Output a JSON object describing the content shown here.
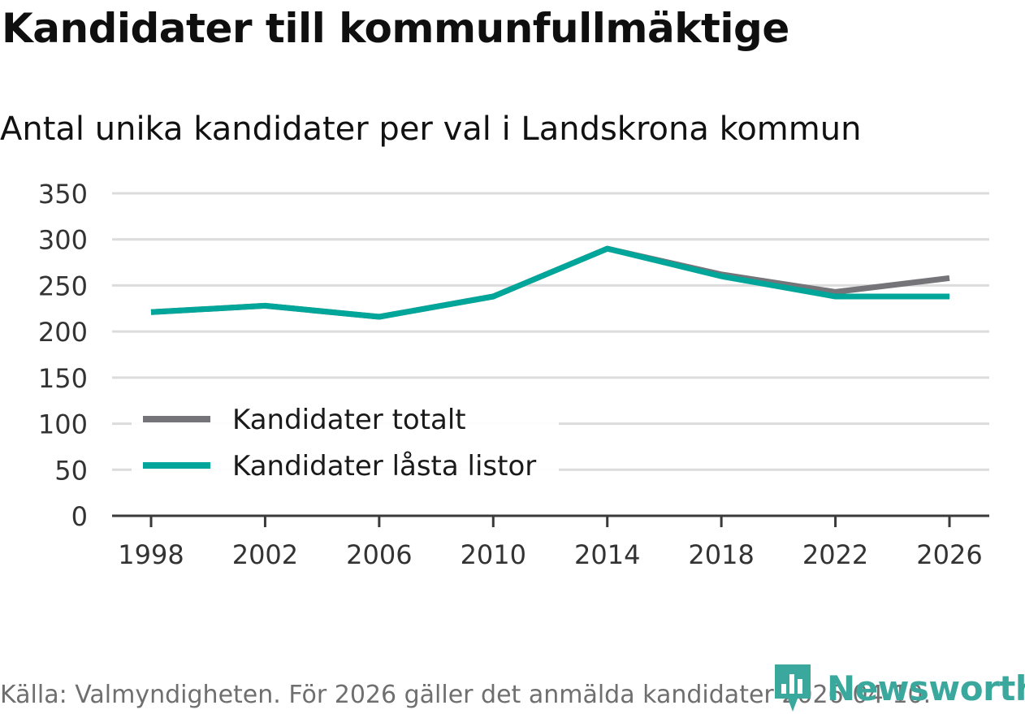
{
  "title": "Kandidater till kommunfullmäktige",
  "subtitle": "Antal unika kandidater per val i Landskrona kommun",
  "source": "Källa: Valmyndigheten. För 2026 gäller det anmälda kandidater 2026-04-10.",
  "brand": "Newsworthy",
  "colors": {
    "total": "#757579",
    "locked": "#00a69a",
    "grid": "#dcdcdc",
    "axis": "#3a3a3a",
    "brand": "#3aa89d"
  },
  "chart_data": {
    "type": "line",
    "title": "Kandidater till kommunfullmäktige",
    "subtitle": "Antal unika kandidater per val i Landskrona kommun",
    "xlabel": "",
    "ylabel": "",
    "x": [
      "1998",
      "2002",
      "2006",
      "2010",
      "2014",
      "2018",
      "2022",
      "2026"
    ],
    "ylim": [
      0,
      350
    ],
    "yticks": [
      0,
      50,
      100,
      150,
      200,
      250,
      300,
      350
    ],
    "grid": true,
    "legend_position": "bottom-left",
    "series": [
      {
        "name": "Kandidater totalt",
        "color": "#757579",
        "values": [
          221,
          228,
          216,
          238,
          290,
          262,
          243,
          258
        ]
      },
      {
        "name": "Kandidater låsta listor",
        "color": "#00a69a",
        "values": [
          221,
          228,
          216,
          238,
          290,
          260,
          238,
          238
        ]
      }
    ]
  }
}
